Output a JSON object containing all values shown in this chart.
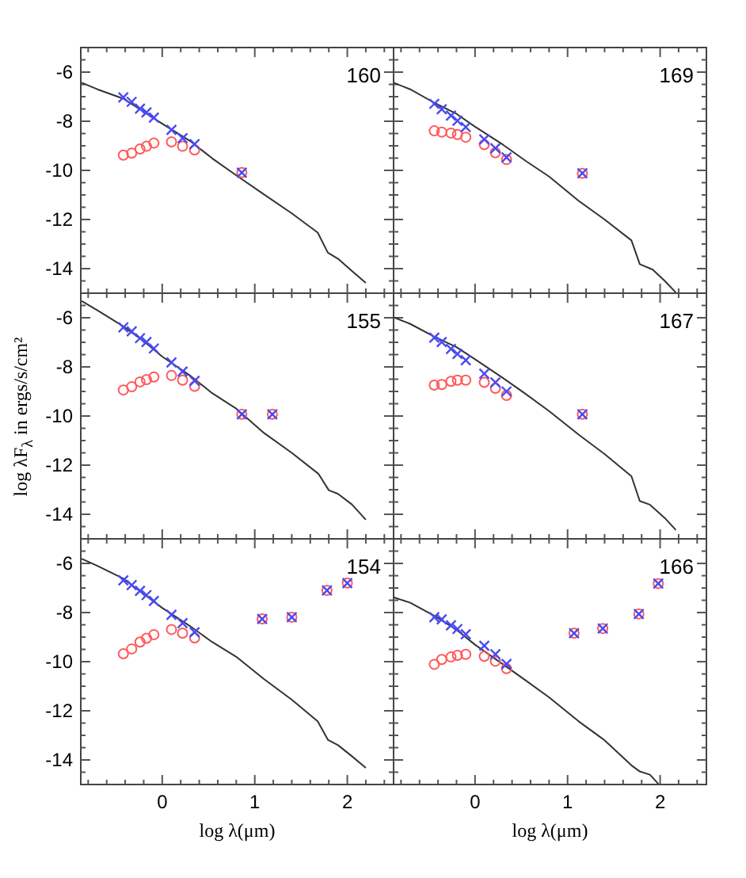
{
  "chart_data": [
    {
      "type": "scatter",
      "annotations": [
        "160"
      ],
      "xlim": [
        -0.88,
        2.5
      ],
      "ylim": [
        -15,
        -5
      ],
      "tick_labels": "y",
      "xticks": [
        {
          "value": -0.8,
          "label": null
        },
        {
          "value": -0.6,
          "label": null
        },
        {
          "value": -0.4,
          "label": null
        },
        {
          "value": -0.2,
          "label": null
        },
        0,
        {
          "value": 0.2,
          "label": null
        },
        {
          "value": 0.4,
          "label": null
        },
        {
          "value": 0.6,
          "label": null
        },
        {
          "value": 0.8,
          "label": null
        },
        1,
        {
          "value": 1.2,
          "label": null
        },
        {
          "value": 1.4,
          "label": null
        },
        {
          "value": 1.6,
          "label": null
        },
        {
          "value": 1.8,
          "label": null
        },
        2,
        {
          "value": 2.2,
          "label": null
        },
        {
          "value": 2.4,
          "label": null
        }
      ],
      "yticks": [
        {
          "value": -5.5,
          "label": null
        },
        -6,
        {
          "value": -6.5,
          "label": null
        },
        {
          "value": -7,
          "label": null
        },
        {
          "value": -7.5,
          "label": null
        },
        -8,
        {
          "value": -8.5,
          "label": null
        },
        {
          "value": -9,
          "label": null
        },
        {
          "value": -9.5,
          "label": null
        },
        -10,
        {
          "value": -10.5,
          "label": null
        },
        {
          "value": -11,
          "label": null
        },
        {
          "value": -11.5,
          "label": null
        },
        -12,
        {
          "value": -12.5,
          "label": null
        },
        {
          "value": -13,
          "label": null
        },
        {
          "value": -13.5,
          "label": null
        },
        -14,
        {
          "value": -14.5,
          "label": null
        }
      ],
      "series": [
        {
          "type": "line",
          "marker": "none",
          "color": "#333333",
          "x": [
            -0.87,
            -0.7,
            -0.42,
            0,
            0.3,
            0.54,
            0.8,
            1.1,
            1.4,
            1.68,
            1.79,
            1.9,
            2.05,
            2.2
          ],
          "values": [
            -6.43,
            -6.7,
            -7.08,
            -8.1,
            -8.8,
            -9.51,
            -10.2,
            -10.98,
            -11.75,
            -12.53,
            -13.35,
            -13.6,
            -14.1,
            -14.58
          ]
        },
        {
          "marker": "circle",
          "color": "#ff5a5a",
          "x": [
            -0.42,
            -0.33,
            -0.24,
            -0.17,
            -0.09,
            0.1,
            0.22,
            0.35,
            0.86
          ],
          "values": [
            -9.38,
            -9.3,
            -9.13,
            -9.02,
            -8.89,
            -8.84,
            -9.02,
            -9.17,
            -10.09
          ]
        },
        {
          "marker": "cross",
          "color": "#4a4af0",
          "x": [
            -0.42,
            -0.33,
            -0.24,
            -0.17,
            -0.09,
            0.1,
            0.22,
            0.35,
            0.86
          ],
          "values": [
            -7.03,
            -7.21,
            -7.49,
            -7.64,
            -7.85,
            -8.35,
            -8.69,
            -8.93,
            -10.09
          ]
        }
      ]
    },
    {
      "type": "scatter",
      "annotations": [
        "169"
      ],
      "xlim": [
        -0.88,
        2.5
      ],
      "ylim": [
        -15,
        -5
      ],
      "tick_labels": false,
      "xticks": [
        {
          "value": -0.8,
          "label": null
        },
        {
          "value": -0.6,
          "label": null
        },
        {
          "value": -0.4,
          "label": null
        },
        {
          "value": -0.2,
          "label": null
        },
        0,
        {
          "value": 0.2,
          "label": null
        },
        {
          "value": 0.4,
          "label": null
        },
        {
          "value": 0.6,
          "label": null
        },
        {
          "value": 0.8,
          "label": null
        },
        1,
        {
          "value": 1.2,
          "label": null
        },
        {
          "value": 1.4,
          "label": null
        },
        {
          "value": 1.6,
          "label": null
        },
        {
          "value": 1.8,
          "label": null
        },
        2,
        {
          "value": 2.2,
          "label": null
        },
        {
          "value": 2.4,
          "label": null
        }
      ],
      "yticks": [
        {
          "value": -5.5,
          "label": null
        },
        -6,
        {
          "value": -6.5,
          "label": null
        },
        {
          "value": -7,
          "label": null
        },
        {
          "value": -7.5,
          "label": null
        },
        -8,
        {
          "value": -8.5,
          "label": null
        },
        {
          "value": -9,
          "label": null
        },
        {
          "value": -9.5,
          "label": null
        },
        -10,
        {
          "value": -10.5,
          "label": null
        },
        {
          "value": -11,
          "label": null
        },
        {
          "value": -11.5,
          "label": null
        },
        -12,
        {
          "value": -12.5,
          "label": null
        },
        {
          "value": -13,
          "label": null
        },
        {
          "value": -13.5,
          "label": null
        },
        -14,
        {
          "value": -14.5,
          "label": null
        }
      ],
      "series": [
        {
          "type": "line",
          "marker": "none",
          "color": "#333333",
          "x": [
            -0.88,
            -0.7,
            -0.44,
            -0.2,
            0,
            0.3,
            0.55,
            0.8,
            1.12,
            1.4,
            1.69,
            1.78,
            1.92,
            2.05,
            2.17
          ],
          "values": [
            -6.43,
            -6.7,
            -7.25,
            -7.7,
            -8.22,
            -8.95,
            -9.62,
            -10.25,
            -11.24,
            -12.0,
            -12.85,
            -13.82,
            -14.04,
            -14.5,
            -14.97
          ]
        },
        {
          "marker": "circle",
          "color": "#ff5a5a",
          "x": [
            -0.44,
            -0.36,
            -0.26,
            -0.19,
            -0.1,
            0.1,
            0.22,
            0.34,
            1.16
          ],
          "values": [
            -8.39,
            -8.44,
            -8.48,
            -8.54,
            -8.65,
            -8.95,
            -9.28,
            -9.56,
            -10.12
          ]
        },
        {
          "marker": "cross",
          "color": "#4a4af0",
          "x": [
            -0.44,
            -0.36,
            -0.26,
            -0.19,
            -0.1,
            0.1,
            0.22,
            0.34,
            1.16
          ],
          "values": [
            -7.29,
            -7.51,
            -7.77,
            -7.98,
            -8.24,
            -8.74,
            -9.1,
            -9.47,
            -10.12
          ]
        }
      ]
    },
    {
      "type": "scatter",
      "annotations": [
        "155"
      ],
      "ylabel": "log λF$_{λ}$ in ergs/s/cm²",
      "xlim": [
        -0.88,
        2.5
      ],
      "ylim": [
        -15,
        -5
      ],
      "tick_labels": "y",
      "xticks": [
        {
          "value": -0.8,
          "label": null
        },
        {
          "value": -0.6,
          "label": null
        },
        {
          "value": -0.4,
          "label": null
        },
        {
          "value": -0.2,
          "label": null
        },
        0,
        {
          "value": 0.2,
          "label": null
        },
        {
          "value": 0.4,
          "label": null
        },
        {
          "value": 0.6,
          "label": null
        },
        {
          "value": 0.8,
          "label": null
        },
        1,
        {
          "value": 1.2,
          "label": null
        },
        {
          "value": 1.4,
          "label": null
        },
        {
          "value": 1.6,
          "label": null
        },
        {
          "value": 1.8,
          "label": null
        },
        2,
        {
          "value": 2.2,
          "label": null
        },
        {
          "value": 2.4,
          "label": null
        }
      ],
      "yticks": [
        {
          "value": -5.5,
          "label": null
        },
        -6,
        {
          "value": -6.5,
          "label": null
        },
        {
          "value": -7,
          "label": null
        },
        {
          "value": -7.5,
          "label": null
        },
        -8,
        {
          "value": -8.5,
          "label": null
        },
        {
          "value": -9,
          "label": null
        },
        {
          "value": -9.5,
          "label": null
        },
        -10,
        {
          "value": -10.5,
          "label": null
        },
        {
          "value": -11,
          "label": null
        },
        {
          "value": -11.5,
          "label": null
        },
        -12,
        {
          "value": -12.5,
          "label": null
        },
        {
          "value": -13,
          "label": null
        },
        {
          "value": -13.5,
          "label": null
        },
        -14,
        {
          "value": -14.5,
          "label": null
        }
      ],
      "series": [
        {
          "type": "line",
          "marker": "none",
          "color": "#333333",
          "x": [
            -0.87,
            -0.7,
            -0.42,
            -0.2,
            0,
            0.3,
            0.54,
            0.8,
            1.1,
            1.4,
            1.69,
            1.8,
            1.9,
            2.05,
            2.2
          ],
          "values": [
            -5.32,
            -5.7,
            -6.35,
            -6.95,
            -7.58,
            -8.35,
            -9.07,
            -9.7,
            -10.69,
            -11.5,
            -12.36,
            -13.02,
            -13.17,
            -13.6,
            -14.22
          ]
        },
        {
          "marker": "circle",
          "color": "#ff5a5a",
          "x": [
            -0.42,
            -0.33,
            -0.24,
            -0.17,
            -0.09,
            0.1,
            0.22,
            0.35,
            0.86,
            1.19
          ],
          "values": [
            -8.94,
            -8.81,
            -8.61,
            -8.52,
            -8.41,
            -8.35,
            -8.54,
            -8.79,
            -9.93,
            -9.93
          ]
        },
        {
          "marker": "cross",
          "color": "#4a4af0",
          "x": [
            -0.42,
            -0.33,
            -0.24,
            -0.17,
            -0.09,
            0.1,
            0.22,
            0.35,
            0.86,
            1.19
          ],
          "values": [
            -6.39,
            -6.55,
            -6.83,
            -6.99,
            -7.25,
            -7.82,
            -8.19,
            -8.57,
            -9.93,
            -9.93
          ]
        }
      ]
    },
    {
      "type": "scatter",
      "annotations": [
        "167"
      ],
      "xlim": [
        -0.88,
        2.5
      ],
      "ylim": [
        -15,
        -5
      ],
      "tick_labels": false,
      "xticks": [
        {
          "value": -0.8,
          "label": null
        },
        {
          "value": -0.6,
          "label": null
        },
        {
          "value": -0.4,
          "label": null
        },
        {
          "value": -0.2,
          "label": null
        },
        0,
        {
          "value": 0.2,
          "label": null
        },
        {
          "value": 0.4,
          "label": null
        },
        {
          "value": 0.6,
          "label": null
        },
        {
          "value": 0.8,
          "label": null
        },
        1,
        {
          "value": 1.2,
          "label": null
        },
        {
          "value": 1.4,
          "label": null
        },
        {
          "value": 1.6,
          "label": null
        },
        {
          "value": 1.8,
          "label": null
        },
        2,
        {
          "value": 2.2,
          "label": null
        },
        {
          "value": 2.4,
          "label": null
        }
      ],
      "yticks": [
        {
          "value": -5.5,
          "label": null
        },
        -6,
        {
          "value": -6.5,
          "label": null
        },
        {
          "value": -7,
          "label": null
        },
        {
          "value": -7.5,
          "label": null
        },
        -8,
        {
          "value": -8.5,
          "label": null
        },
        {
          "value": -9,
          "label": null
        },
        {
          "value": -9.5,
          "label": null
        },
        -10,
        {
          "value": -10.5,
          "label": null
        },
        {
          "value": -11,
          "label": null
        },
        {
          "value": -11.5,
          "label": null
        },
        -12,
        {
          "value": -12.5,
          "label": null
        },
        {
          "value": -13,
          "label": null
        },
        {
          "value": -13.5,
          "label": null
        },
        -14,
        {
          "value": -14.5,
          "label": null
        }
      ],
      "series": [
        {
          "type": "line",
          "marker": "none",
          "color": "#333333",
          "x": [
            -0.88,
            -0.7,
            -0.44,
            -0.2,
            0,
            0.3,
            0.55,
            0.8,
            1.12,
            1.4,
            1.69,
            1.78,
            1.89,
            2.05,
            2.17
          ],
          "values": [
            -5.98,
            -6.25,
            -6.77,
            -7.2,
            -7.69,
            -8.45,
            -9.11,
            -9.8,
            -10.76,
            -11.55,
            -12.45,
            -13.46,
            -13.61,
            -14.15,
            -14.64
          ]
        },
        {
          "marker": "circle",
          "color": "#ff5a5a",
          "x": [
            -0.44,
            -0.36,
            -0.26,
            -0.19,
            -0.1,
            0.1,
            0.22,
            0.34,
            1.16
          ],
          "values": [
            -8.74,
            -8.72,
            -8.59,
            -8.54,
            -8.54,
            -8.63,
            -8.87,
            -9.16,
            -9.93
          ]
        },
        {
          "marker": "cross",
          "color": "#4a4af0",
          "x": [
            -0.44,
            -0.36,
            -0.26,
            -0.19,
            -0.1,
            0.1,
            0.22,
            0.34,
            1.16
          ],
          "values": [
            -6.81,
            -6.99,
            -7.27,
            -7.47,
            -7.73,
            -8.28,
            -8.63,
            -9.0,
            -9.93
          ]
        }
      ]
    },
    {
      "type": "scatter",
      "annotations": [
        "154"
      ],
      "xlabel": "log λ(μm)",
      "xlim": [
        -0.88,
        2.5
      ],
      "ylim": [
        -15,
        -5
      ],
      "xticks": [
        {
          "value": -0.8,
          "label": null
        },
        {
          "value": -0.6,
          "label": null
        },
        {
          "value": -0.4,
          "label": null
        },
        {
          "value": -0.2,
          "label": null
        },
        0,
        {
          "value": 0.2,
          "label": null
        },
        {
          "value": 0.4,
          "label": null
        },
        {
          "value": 0.6,
          "label": null
        },
        {
          "value": 0.8,
          "label": null
        },
        1,
        {
          "value": 1.2,
          "label": null
        },
        {
          "value": 1.4,
          "label": null
        },
        {
          "value": 1.6,
          "label": null
        },
        {
          "value": 1.8,
          "label": null
        },
        2,
        {
          "value": 2.2,
          "label": null
        },
        {
          "value": 2.4,
          "label": null
        }
      ],
      "yticks": [
        {
          "value": -5.5,
          "label": null
        },
        -6,
        {
          "value": -6.5,
          "label": null
        },
        {
          "value": -7,
          "label": null
        },
        {
          "value": -7.5,
          "label": null
        },
        -8,
        {
          "value": -8.5,
          "label": null
        },
        {
          "value": -9,
          "label": null
        },
        {
          "value": -9.5,
          "label": null
        },
        -10,
        {
          "value": -10.5,
          "label": null
        },
        {
          "value": -11,
          "label": null
        },
        {
          "value": -11.5,
          "label": null
        },
        -12,
        {
          "value": -12.5,
          "label": null
        },
        {
          "value": -13,
          "label": null
        },
        {
          "value": -13.5,
          "label": null
        },
        -14,
        {
          "value": -14.5,
          "label": null
        }
      ],
      "series": [
        {
          "type": "line",
          "marker": "none",
          "color": "#333333",
          "x": [
            -0.87,
            -0.7,
            -0.42,
            0,
            0.3,
            0.54,
            0.8,
            1.1,
            1.4,
            1.68,
            1.79,
            1.9,
            2.05,
            2.2
          ],
          "values": [
            -5.81,
            -6.1,
            -6.62,
            -7.81,
            -8.55,
            -9.2,
            -9.8,
            -10.71,
            -11.55,
            -12.43,
            -13.18,
            -13.4,
            -13.85,
            -14.32
          ]
        },
        {
          "marker": "circle",
          "color": "#ff5a5a",
          "x": [
            -0.42,
            -0.33,
            -0.24,
            -0.17,
            -0.09,
            0.1,
            0.22,
            0.35,
            1.08,
            1.4,
            1.78,
            2.0
          ],
          "values": [
            -9.68,
            -9.48,
            -9.2,
            -9.05,
            -8.9,
            -8.69,
            -8.84,
            -9.03,
            -8.26,
            -8.19,
            -7.1,
            -6.8
          ]
        },
        {
          "marker": "cross",
          "color": "#4a4af0",
          "x": [
            -0.42,
            -0.33,
            -0.24,
            -0.17,
            -0.09,
            0.1,
            0.22,
            0.35,
            1.08,
            1.4,
            1.78,
            2.0
          ],
          "values": [
            -6.69,
            -6.88,
            -7.12,
            -7.29,
            -7.53,
            -8.09,
            -8.43,
            -8.8,
            -8.26,
            -8.19,
            -7.1,
            -6.8
          ]
        }
      ]
    },
    {
      "type": "scatter",
      "annotations": [
        "166"
      ],
      "xlabel": "log λ(μm)",
      "xlim": [
        -0.88,
        2.5
      ],
      "ylim": [
        -15,
        -5
      ],
      "tick_labels": "x",
      "xticks": [
        {
          "value": -0.8,
          "label": null
        },
        {
          "value": -0.6,
          "label": null
        },
        {
          "value": -0.4,
          "label": null
        },
        {
          "value": -0.2,
          "label": null
        },
        0,
        {
          "value": 0.2,
          "label": null
        },
        {
          "value": 0.4,
          "label": null
        },
        {
          "value": 0.6,
          "label": null
        },
        {
          "value": 0.8,
          "label": null
        },
        1,
        {
          "value": 1.2,
          "label": null
        },
        {
          "value": 1.4,
          "label": null
        },
        {
          "value": 1.6,
          "label": null
        },
        {
          "value": 1.8,
          "label": null
        },
        2,
        {
          "value": 2.2,
          "label": null
        },
        {
          "value": 2.4,
          "label": null
        }
      ],
      "yticks": [
        {
          "value": -5.5,
          "label": null
        },
        -6,
        {
          "value": -6.5,
          "label": null
        },
        {
          "value": -7,
          "label": null
        },
        {
          "value": -7.5,
          "label": null
        },
        -8,
        {
          "value": -8.5,
          "label": null
        },
        {
          "value": -9,
          "label": null
        },
        {
          "value": -9.5,
          "label": null
        },
        -10,
        {
          "value": -10.5,
          "label": null
        },
        {
          "value": -11,
          "label": null
        },
        {
          "value": -11.5,
          "label": null
        },
        -12,
        {
          "value": -12.5,
          "label": null
        },
        {
          "value": -13,
          "label": null
        },
        {
          "value": -13.5,
          "label": null
        },
        -14,
        {
          "value": -14.5,
          "label": null
        }
      ],
      "series": [
        {
          "type": "line",
          "marker": "none",
          "color": "#333333",
          "x": [
            -0.88,
            -0.7,
            -0.44,
            -0.2,
            0,
            0.3,
            0.55,
            0.8,
            1.12,
            1.4,
            1.69,
            1.78,
            1.89,
            1.98
          ],
          "values": [
            -7.38,
            -7.6,
            -8.13,
            -8.7,
            -9.31,
            -10.1,
            -10.77,
            -11.45,
            -12.43,
            -13.2,
            -14.22,
            -14.47,
            -14.6,
            -14.97
          ]
        },
        {
          "marker": "circle",
          "color": "#ff5a5a",
          "x": [
            -0.44,
            -0.36,
            -0.26,
            -0.19,
            -0.1,
            0.1,
            0.22,
            0.34,
            1.07,
            1.38,
            1.77,
            1.98
          ],
          "values": [
            -10.11,
            -9.91,
            -9.81,
            -9.74,
            -9.7,
            -9.78,
            -9.98,
            -10.28,
            -8.84,
            -8.65,
            -8.06,
            -6.82
          ]
        },
        {
          "marker": "cross",
          "color": "#4a4af0",
          "x": [
            -0.44,
            -0.36,
            -0.26,
            -0.19,
            -0.1,
            0.1,
            0.22,
            0.34,
            1.07,
            1.38,
            1.77,
            1.98
          ],
          "values": [
            -8.19,
            -8.28,
            -8.52,
            -8.67,
            -8.88,
            -9.35,
            -9.7,
            -10.09,
            -8.84,
            -8.65,
            -8.06,
            -6.82
          ]
        }
      ]
    }
  ]
}
